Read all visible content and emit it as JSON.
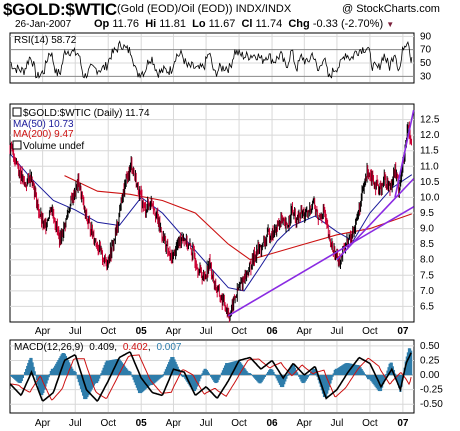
{
  "header": {
    "symbol": "$GOLD:$WTIC",
    "description": "(Gold (EOD)/Oil (EOD))",
    "exchange": "INDX/INDX",
    "date": "26-Jan-2007",
    "op_label": "Op",
    "op": "11.76",
    "hi_label": "Hi",
    "hi": "11.81",
    "lo_label": "Lo",
    "lo": "11.67",
    "cl_label": "Cl",
    "cl": "11.74",
    "chg_label": "Chg",
    "chg": "-0.33 (-2.70%)",
    "chg_arrow": "▼",
    "credit": "@ StockCharts.com",
    "credit_arrow": "▶"
  },
  "colors": {
    "price": "#000000",
    "down_bar": "#cc0033",
    "ma50": "#1a1a9a",
    "ma200": "#cc1111",
    "trendline": "#8a2be2",
    "macd": "#000000",
    "signal": "#cc1111",
    "histogram": "#2e7dab",
    "grid": "#d8d8d8"
  },
  "chart_data": [
    {
      "type": "line",
      "panel": "rsi",
      "legend": "RSI(14) 58.72",
      "series": [
        {
          "name": "RSI(14)",
          "last": 58.72
        }
      ],
      "ylim": [
        20,
        95
      ],
      "yticks": [
        90,
        70,
        50,
        30
      ],
      "reference_lines": [
        70,
        30
      ],
      "grid": true
    },
    {
      "type": "line",
      "panel": "price",
      "legend": {
        "main": "$GOLD:$WTIC (Daily) 11.74",
        "ma50": "MA(50) 10.73",
        "ma200": "MA(200) 9.47",
        "volume": "Volume undef"
      },
      "ylim": [
        6.0,
        13.0
      ],
      "yticks": [
        6.5,
        7.0,
        7.5,
        8.0,
        8.5,
        9.0,
        9.5,
        10.0,
        10.5,
        11.0,
        11.5,
        12.0,
        12.5
      ],
      "ytick_labels": [
        "6.5",
        "7.0",
        "7.5",
        "8.0",
        "8.5",
        "9.0",
        "9.5",
        "10.0",
        "10.5",
        "11.0",
        "11.5",
        "12.0",
        "12.5"
      ],
      "xticks": [
        "Apr",
        "Jul",
        "Oct",
        "05",
        "Apr",
        "Jul",
        "Oct",
        "06",
        "Apr",
        "Jul",
        "Oct",
        "07"
      ],
      "x_range": [
        "2004-01",
        "2007-02"
      ],
      "price_path": [
        [
          "2004-01-01",
          11.6
        ],
        [
          "2004-01-20",
          11.1
        ],
        [
          "2004-02-10",
          10.4
        ],
        [
          "2004-03-01",
          10.7
        ],
        [
          "2004-03-20",
          9.6
        ],
        [
          "2004-04-05",
          9.0
        ],
        [
          "2004-04-25",
          9.7
        ],
        [
          "2004-05-20",
          8.6
        ],
        [
          "2004-06-15",
          9.7
        ],
        [
          "2004-07-10",
          10.5
        ],
        [
          "2004-07-30",
          9.4
        ],
        [
          "2004-08-20",
          8.8
        ],
        [
          "2004-09-10",
          8.2
        ],
        [
          "2004-09-25",
          7.9
        ],
        [
          "2004-10-10",
          8.3
        ],
        [
          "2004-10-25",
          9.0
        ],
        [
          "2004-11-05",
          9.8
        ],
        [
          "2004-11-20",
          10.5
        ],
        [
          "2004-12-05",
          11.1
        ],
        [
          "2004-12-20",
          10.4
        ],
        [
          "2005-01-10",
          9.6
        ],
        [
          "2005-02-01",
          9.9
        ],
        [
          "2005-02-20",
          9.1
        ],
        [
          "2005-03-10",
          8.5
        ],
        [
          "2005-03-25",
          8.0
        ],
        [
          "2005-04-10",
          8.4
        ],
        [
          "2005-04-25",
          8.8
        ],
        [
          "2005-05-10",
          8.5
        ],
        [
          "2005-05-25",
          8.2
        ],
        [
          "2005-06-10",
          7.7
        ],
        [
          "2005-06-25",
          7.4
        ],
        [
          "2005-07-10",
          7.9
        ],
        [
          "2005-07-25",
          7.2
        ],
        [
          "2005-08-10",
          6.8
        ],
        [
          "2005-08-25",
          6.5
        ],
        [
          "2005-09-05",
          6.2
        ],
        [
          "2005-09-20",
          6.8
        ],
        [
          "2005-10-05",
          7.2
        ],
        [
          "2005-10-20",
          7.5
        ],
        [
          "2005-11-05",
          7.9
        ],
        [
          "2005-11-20",
          8.3
        ],
        [
          "2005-12-05",
          8.4
        ],
        [
          "2005-12-20",
          8.8
        ],
        [
          "2006-01-10",
          8.9
        ],
        [
          "2006-01-25",
          9.3
        ],
        [
          "2006-02-10",
          9.0
        ],
        [
          "2006-02-25",
          9.6
        ],
        [
          "2006-03-10",
          9.2
        ],
        [
          "2006-03-25",
          9.5
        ],
        [
          "2006-04-10",
          9.4
        ],
        [
          "2006-04-25",
          9.9
        ],
        [
          "2006-05-10",
          9.3
        ],
        [
          "2006-05-25",
          9.6
        ],
        [
          "2006-06-10",
          8.6
        ],
        [
          "2006-06-25",
          8.2
        ],
        [
          "2006-07-10",
          8.0
        ],
        [
          "2006-07-25",
          8.5
        ],
        [
          "2006-08-10",
          8.7
        ],
        [
          "2006-08-25",
          9.3
        ],
        [
          "2006-09-10",
          10.1
        ],
        [
          "2006-09-25",
          10.9
        ],
        [
          "2006-10-10",
          10.6
        ],
        [
          "2006-10-25",
          10.2
        ],
        [
          "2006-11-10",
          10.6
        ],
        [
          "2006-11-25",
          10.3
        ],
        [
          "2006-12-10",
          10.9
        ],
        [
          "2006-12-20",
          10.3
        ],
        [
          "2007-01-05",
          11.3
        ],
        [
          "2007-01-15",
          12.3
        ],
        [
          "2007-01-26",
          11.74
        ]
      ],
      "ma50_path": [
        [
          "2004-01-01",
          11.4
        ],
        [
          "2004-03-01",
          10.6
        ],
        [
          "2004-05-01",
          9.9
        ],
        [
          "2004-07-01",
          9.6
        ],
        [
          "2004-09-01",
          9.2
        ],
        [
          "2004-11-01",
          9.1
        ],
        [
          "2005-01-01",
          10.0
        ],
        [
          "2005-03-01",
          9.5
        ],
        [
          "2005-05-01",
          8.7
        ],
        [
          "2005-07-01",
          7.9
        ],
        [
          "2005-09-01",
          7.1
        ],
        [
          "2005-10-15",
          7.0
        ],
        [
          "2005-12-01",
          7.8
        ],
        [
          "2006-01-15",
          8.6
        ],
        [
          "2006-03-01",
          9.1
        ],
        [
          "2006-05-01",
          9.4
        ],
        [
          "2006-07-01",
          8.9
        ],
        [
          "2006-08-15",
          8.6
        ],
        [
          "2006-10-01",
          9.5
        ],
        [
          "2006-12-01",
          10.3
        ],
        [
          "2007-01-26",
          10.73
        ]
      ],
      "ma200_path": [
        [
          "2004-06-01",
          10.7
        ],
        [
          "2004-09-01",
          10.2
        ],
        [
          "2004-12-01",
          10.1
        ],
        [
          "2005-03-01",
          9.9
        ],
        [
          "2005-06-01",
          9.5
        ],
        [
          "2005-09-01",
          8.5
        ],
        [
          "2005-11-01",
          8.0
        ],
        [
          "2006-01-01",
          8.2
        ],
        [
          "2006-04-01",
          8.5
        ],
        [
          "2006-07-01",
          8.8
        ],
        [
          "2006-10-01",
          9.0
        ],
        [
          "2007-01-26",
          9.47
        ]
      ],
      "trendlines": [
        {
          "from": [
            "2005-09-01",
            6.2
          ],
          "to": [
            "2007-01-31",
            9.7
          ]
        },
        {
          "from": [
            "2006-07-01",
            8.0
          ],
          "to": [
            "2007-01-31",
            10.6
          ]
        },
        {
          "from": [
            "2006-12-10",
            10.0
          ],
          "to": [
            "2007-01-31",
            12.8
          ]
        }
      ],
      "grid": true
    },
    {
      "type": "line",
      "panel": "macd",
      "legend": {
        "label": "MACD(12,26,9)",
        "macd": "0.409",
        "signal": "0.402",
        "hist": "0.007"
      },
      "ylim": [
        -0.65,
        0.6
      ],
      "yticks": [
        0.5,
        0.25,
        0.0,
        -0.25,
        -0.5
      ],
      "ytick_labels": [
        "0.50",
        "0.25",
        "0.00",
        "-0.25",
        "-0.50"
      ],
      "xticks": [
        "Apr",
        "Jul",
        "Oct",
        "05",
        "Apr",
        "Jul",
        "Oct",
        "06",
        "Apr",
        "Jul",
        "Oct",
        "07"
      ],
      "macd_path": [
        [
          "2004-01-01",
          -0.15
        ],
        [
          "2004-02-01",
          -0.35
        ],
        [
          "2004-03-01",
          0.05
        ],
        [
          "2004-04-01",
          -0.45
        ],
        [
          "2004-05-01",
          -0.3
        ],
        [
          "2004-06-01",
          0.25
        ],
        [
          "2004-07-01",
          0.35
        ],
        [
          "2004-08-01",
          -0.25
        ],
        [
          "2004-09-01",
          -0.45
        ],
        [
          "2004-10-01",
          -0.1
        ],
        [
          "2004-11-01",
          0.3
        ],
        [
          "2004-12-01",
          0.4
        ],
        [
          "2005-01-01",
          -0.05
        ],
        [
          "2005-02-01",
          -0.3
        ],
        [
          "2005-03-01",
          -0.35
        ],
        [
          "2005-04-01",
          0.1
        ],
        [
          "2005-05-01",
          0.05
        ],
        [
          "2005-06-01",
          -0.35
        ],
        [
          "2005-07-01",
          -0.2
        ],
        [
          "2005-08-01",
          -0.4
        ],
        [
          "2005-09-01",
          -0.1
        ],
        [
          "2005-10-01",
          0.25
        ],
        [
          "2005-11-01",
          0.3
        ],
        [
          "2005-12-01",
          0.1
        ],
        [
          "2006-01-01",
          0.25
        ],
        [
          "2006-02-01",
          -0.05
        ],
        [
          "2006-03-01",
          0.2
        ],
        [
          "2006-04-01",
          0.0
        ],
        [
          "2006-05-01",
          0.15
        ],
        [
          "2006-06-01",
          -0.4
        ],
        [
          "2006-07-01",
          -0.25
        ],
        [
          "2006-08-01",
          0.05
        ],
        [
          "2006-09-01",
          0.3
        ],
        [
          "2006-10-01",
          0.2
        ],
        [
          "2006-11-01",
          -0.2
        ],
        [
          "2006-12-01",
          0.1
        ],
        [
          "2006-12-25",
          -0.25
        ],
        [
          "2007-01-10",
          0.2
        ],
        [
          "2007-01-26",
          0.409
        ]
      ],
      "signal_lag_days": 25,
      "grid": true
    }
  ]
}
